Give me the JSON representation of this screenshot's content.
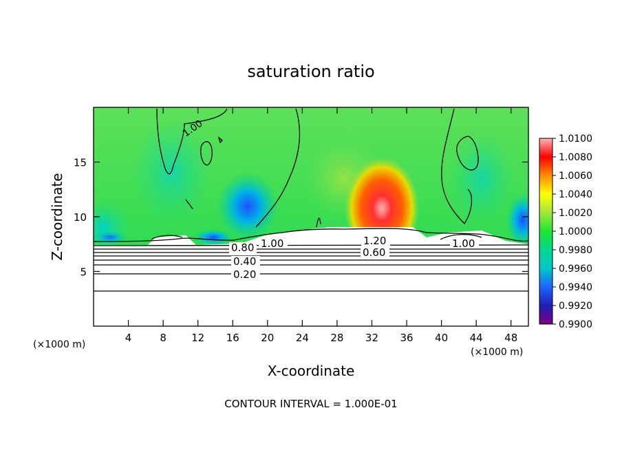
{
  "chart_data": {
    "type": "heatmap",
    "title": "saturation ratio",
    "xlabel": "X-coordinate",
    "ylabel": "Z-coordinate",
    "x_unit": "(×1000 m)",
    "x_unit_right": "(×1000 m)",
    "xlim": [
      0,
      50
    ],
    "ylim": [
      0,
      20
    ],
    "x_ticks": [
      4,
      8,
      12,
      16,
      20,
      24,
      28,
      32,
      36,
      40,
      44,
      48
    ],
    "y_ticks": [
      5,
      10,
      15
    ],
    "colorbar": {
      "min": 0.99,
      "max": 1.01,
      "labels": [
        "1.0100",
        "1.0080",
        "1.0060",
        "1.0040",
        "1.0020",
        "1.0000",
        "0.9980",
        "0.9960",
        "0.9940",
        "0.9920",
        "0.9900"
      ],
      "colors": [
        "#800080",
        "#1e1eb4",
        "#0000ff",
        "#1e90ff",
        "#00c8c8",
        "#00d890",
        "#1ee632",
        "#50e650",
        "#a0e63c",
        "#ffff00",
        "#ffc800",
        "#ff8c00",
        "#ff5000",
        "#ff0000",
        "#ff6464",
        "#ffb4b4"
      ]
    },
    "contour_labels": [
      {
        "text": "1.00",
        "x": 9.3,
        "z": 18.4
      },
      {
        "text": "0.80",
        "x": 17.4,
        "z": 7.0
      },
      {
        "text": "1.00",
        "x": 21.0,
        "z": 7.4
      },
      {
        "text": "0.40",
        "x": 17.3,
        "z": 5.8
      },
      {
        "text": "0.20",
        "x": 17.3,
        "z": 4.6
      },
      {
        "text": "1.20",
        "x": 32.4,
        "z": 7.6
      },
      {
        "text": "0.60",
        "x": 31.5,
        "z": 6.7
      },
      {
        "text": "1.00",
        "x": 42.5,
        "z": 7.3
      }
    ],
    "footer": "CONTOUR INTERVAL = 1.000E-01"
  }
}
